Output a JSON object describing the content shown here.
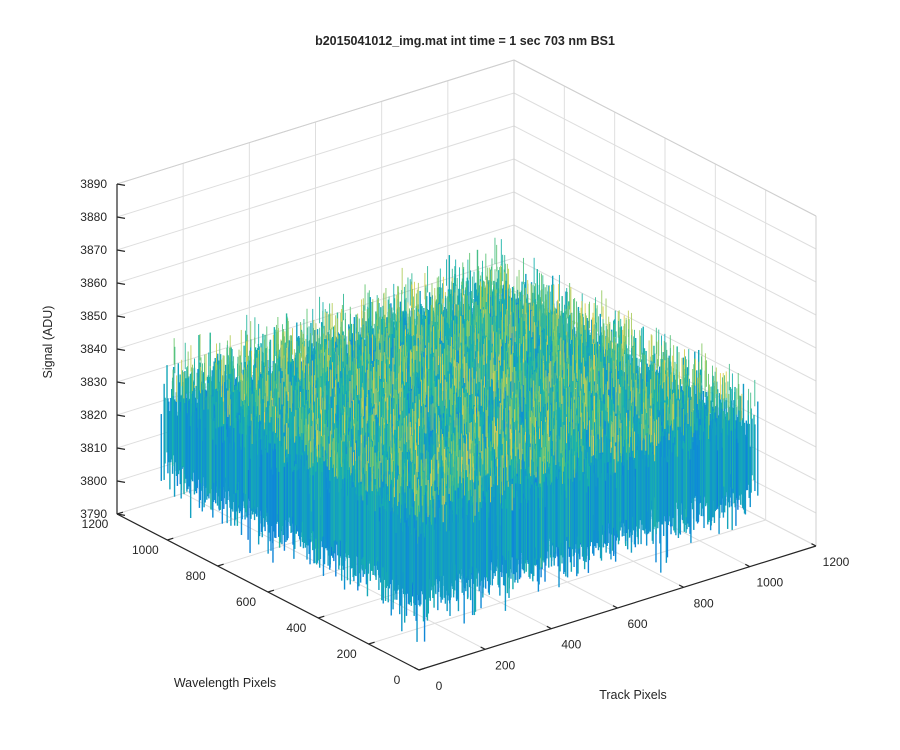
{
  "chart_data": {
    "type": "surface",
    "title": "b2015041012_img.mat int time = 1 sec  703 nm BS1",
    "xlabel": "Track Pixels",
    "ylabel": "Wavelength Pixels",
    "zlabel": "Signal (ADU)",
    "xlim": [
      0,
      1200
    ],
    "ylim": [
      0,
      1200
    ],
    "zlim": [
      3790,
      3890
    ],
    "xticks": [
      "0",
      "200",
      "400",
      "600",
      "800",
      "1000",
      "1200"
    ],
    "yticks": [
      "0",
      "200",
      "400",
      "600",
      "800",
      "1000",
      "1200"
    ],
    "zticks": [
      "3790",
      "3800",
      "3810",
      "3820",
      "3830",
      "3840",
      "3850",
      "3860",
      "3870",
      "3880",
      "3890"
    ],
    "data_extent": {
      "x": [
        0,
        1024
      ],
      "y": [
        0,
        1024
      ]
    },
    "noise_band": {
      "center": 3822,
      "typical_low": 3805,
      "typical_high": 3840,
      "min": 3790,
      "max": 3880
    },
    "grid": true,
    "colormap": "parula",
    "colors": {
      "low": "#0f6fd6",
      "mid": "#1fb3a8",
      "high": "#e9d35a"
    }
  }
}
